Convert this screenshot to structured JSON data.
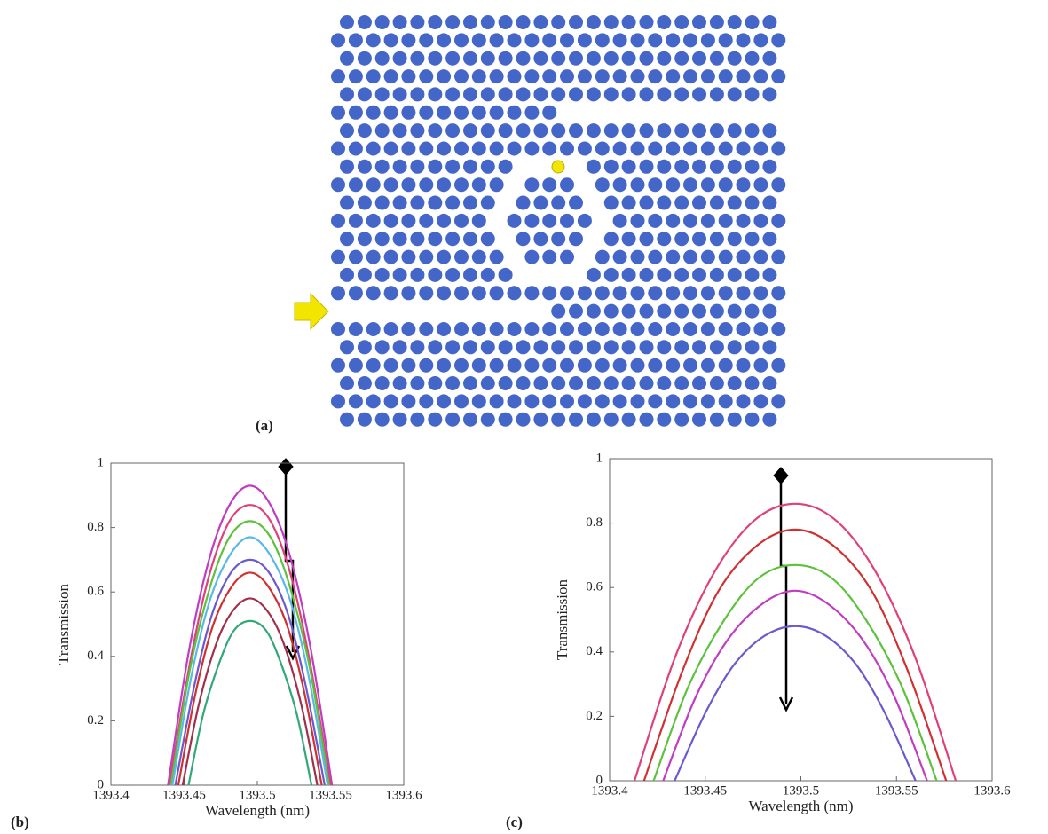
{
  "panel_a": {
    "label": "(a)"
  },
  "chart_data": [
    {
      "type": "line",
      "label": "(b)",
      "x_label": "Wavelength (nm)",
      "y_label": "Transmission",
      "xlim": [
        1393.4,
        1393.6
      ],
      "xticks": [
        1393.4,
        1393.45,
        1393.5,
        1393.55,
        1393.6
      ],
      "ylim": [
        0,
        1
      ],
      "yticks": [
        0,
        0.2,
        0.4,
        0.6,
        0.8,
        1
      ],
      "series": [
        {
          "color": "#c03cc0",
          "x": [
            1393.439,
            1393.453,
            1393.467,
            1393.481,
            1393.495,
            1393.509,
            1393.523,
            1393.537,
            1393.551
          ],
          "values": [
            0,
            0.41,
            0.7,
            0.87,
            0.93,
            0.87,
            0.7,
            0.41,
            0
          ]
        },
        {
          "color": "#e0407a",
          "x": [
            1393.44,
            1393.454,
            1393.467,
            1393.481,
            1393.495,
            1393.509,
            1393.523,
            1393.536,
            1393.55
          ],
          "values": [
            0,
            0.38,
            0.65,
            0.82,
            0.87,
            0.82,
            0.65,
            0.38,
            0
          ]
        },
        {
          "color": "#5cc23c",
          "x": [
            1393.441,
            1393.454,
            1393.468,
            1393.481,
            1393.495,
            1393.509,
            1393.522,
            1393.536,
            1393.549
          ],
          "values": [
            0,
            0.36,
            0.62,
            0.77,
            0.82,
            0.77,
            0.62,
            0.36,
            0
          ]
        },
        {
          "color": "#5ab8e8",
          "x": [
            1393.442,
            1393.455,
            1393.468,
            1393.482,
            1393.495,
            1393.508,
            1393.522,
            1393.535,
            1393.548
          ],
          "values": [
            0,
            0.34,
            0.58,
            0.72,
            0.77,
            0.72,
            0.58,
            0.34,
            0
          ]
        },
        {
          "color": "#6a5acd",
          "x": [
            1393.444,
            1393.457,
            1393.469,
            1393.482,
            1393.495,
            1393.508,
            1393.521,
            1393.533,
            1393.546
          ],
          "values": [
            0,
            0.31,
            0.53,
            0.66,
            0.7,
            0.66,
            0.53,
            0.31,
            0
          ]
        },
        {
          "color": "#d03030",
          "x": [
            1393.446,
            1393.458,
            1393.47,
            1393.483,
            1393.495,
            1393.507,
            1393.52,
            1393.532,
            1393.544
          ],
          "values": [
            0,
            0.29,
            0.5,
            0.62,
            0.66,
            0.62,
            0.5,
            0.29,
            0
          ]
        },
        {
          "color": "#a0304a",
          "x": [
            1393.449,
            1393.46,
            1393.472,
            1393.483,
            1393.495,
            1393.507,
            1393.518,
            1393.53,
            1393.541
          ],
          "values": [
            0,
            0.25,
            0.44,
            0.54,
            0.58,
            0.54,
            0.44,
            0.25,
            0
          ]
        },
        {
          "color": "#30a878",
          "x": [
            1393.453,
            1393.463,
            1393.474,
            1393.484,
            1393.495,
            1393.506,
            1393.516,
            1393.527,
            1393.537
          ],
          "values": [
            0,
            0.22,
            0.38,
            0.48,
            0.51,
            0.48,
            0.38,
            0.22,
            0
          ]
        }
      ]
    },
    {
      "type": "line",
      "label": "(c)",
      "x_label": "Wavelength (nm)",
      "y_label": "Transmission",
      "xlim": [
        1393.4,
        1393.6
      ],
      "xticks": [
        1393.4,
        1393.45,
        1393.5,
        1393.55,
        1393.6
      ],
      "ylim": [
        0,
        1
      ],
      "yticks": [
        0,
        0.2,
        0.4,
        0.6,
        0.8,
        1
      ],
      "series": [
        {
          "color": "#e0407a",
          "x": [
            1393.413,
            1393.434,
            1393.455,
            1393.476,
            1393.497,
            1393.518,
            1393.539,
            1393.56,
            1393.581
          ],
          "values": [
            0,
            0.38,
            0.65,
            0.81,
            0.86,
            0.81,
            0.65,
            0.38,
            0
          ]
        },
        {
          "color": "#d03030",
          "x": [
            1393.418,
            1393.438,
            1393.457,
            1393.477,
            1393.497,
            1393.517,
            1393.537,
            1393.556,
            1393.576
          ],
          "values": [
            0,
            0.34,
            0.59,
            0.73,
            0.78,
            0.73,
            0.59,
            0.34,
            0
          ]
        },
        {
          "color": "#5cc23c",
          "x": [
            1393.423,
            1393.441,
            1393.46,
            1393.478,
            1393.497,
            1393.516,
            1393.534,
            1393.553,
            1393.571
          ],
          "values": [
            0,
            0.29,
            0.5,
            0.63,
            0.67,
            0.63,
            0.5,
            0.29,
            0
          ]
        },
        {
          "color": "#c03cc0",
          "x": [
            1393.428,
            1393.445,
            1393.462,
            1393.48,
            1393.497,
            1393.514,
            1393.532,
            1393.549,
            1393.566
          ],
          "values": [
            0,
            0.26,
            0.44,
            0.55,
            0.59,
            0.55,
            0.44,
            0.26,
            0
          ]
        },
        {
          "color": "#6a5acd",
          "x": [
            1393.434,
            1393.45,
            1393.465,
            1393.481,
            1393.497,
            1393.513,
            1393.529,
            1393.544,
            1393.56
          ],
          "values": [
            0,
            0.21,
            0.36,
            0.45,
            0.48,
            0.45,
            0.36,
            0.21,
            0
          ]
        }
      ]
    }
  ]
}
